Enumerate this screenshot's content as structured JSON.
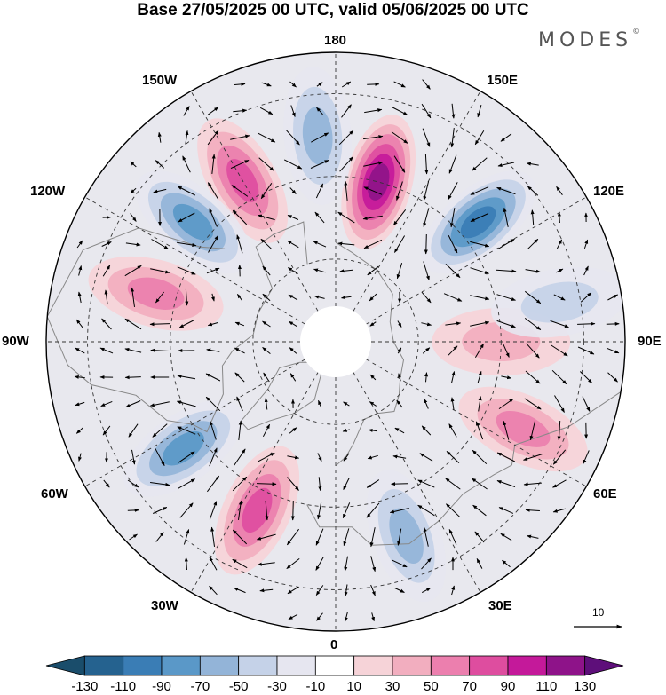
{
  "title": "Base 27/05/2025 00 UTC, valid 05/06/2025 00 UTC",
  "brand": "MODES",
  "brand_mark": "©",
  "longitude_labels": {
    "lon_180": "180",
    "lon_150e": "150E",
    "lon_120e": "120E",
    "lon_90e": "90E",
    "lon_60e": "60E",
    "lon_30e": "30E",
    "lon_0": "0",
    "lon_30w": "30W",
    "lon_60w": "60W",
    "lon_90w": "90W",
    "lon_120w": "120W",
    "lon_150w": "150W"
  },
  "colorbar": {
    "labels": [
      "-130",
      "-110",
      "-90",
      "-70",
      "-50",
      "-30",
      "-10",
      "10",
      "30",
      "50",
      "70",
      "90",
      "110",
      "130"
    ],
    "colors": [
      "#1a4d6b",
      "#25628f",
      "#3a7db5",
      "#5a98c8",
      "#93b4d8",
      "#c5d2e8",
      "#e6e6f0",
      "#ffffff",
      "#f6d3d8",
      "#f2aebf",
      "#ec7fae",
      "#de4d9f",
      "#c4199a",
      "#8e1389",
      "#5e0f7a"
    ]
  },
  "vector_scale": {
    "label": "10"
  },
  "map_features": {
    "projection": "north-polar-stereographic",
    "anomaly_centers": [
      {
        "lon": 165,
        "lat": 50,
        "value": 120,
        "label": "strong positive"
      },
      {
        "lon": 130,
        "lat": 45,
        "value": -100,
        "label": "strong negative"
      },
      {
        "lon": -175,
        "lat": 40,
        "value": -50
      },
      {
        "lon": -150,
        "lat": 45,
        "value": 80
      },
      {
        "lon": -130,
        "lat": 45,
        "value": -80
      },
      {
        "lon": -105,
        "lat": 45,
        "value": 55
      },
      {
        "lon": -55,
        "lat": 45,
        "value": -80
      },
      {
        "lon": -25,
        "lat": 45,
        "value": 80
      },
      {
        "lon": 20,
        "lat": 40,
        "value": -50
      },
      {
        "lon": 65,
        "lat": 40,
        "value": 60
      },
      {
        "lon": 90,
        "lat": 50,
        "value": 40
      },
      {
        "lon": 100,
        "lat": 35,
        "value": -30
      }
    ]
  }
}
